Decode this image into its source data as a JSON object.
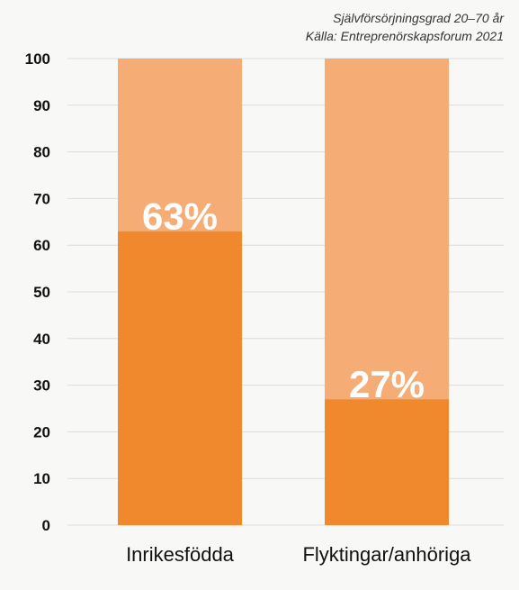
{
  "subtitle": {
    "line1": "Självförsörjningsgrad 20–70 år",
    "line2": "Källa: Entreprenörskapsforum 2021"
  },
  "colors": {
    "background": "#f8f8f6",
    "bar_fill": "#f0892e",
    "bar_remainder": "#f5ac75",
    "grid": "#dcdcdc",
    "text": "#111111",
    "label_text": "#ffffff"
  },
  "chart_data": {
    "type": "bar",
    "stacked": true,
    "categories": [
      "Inrikesfödda",
      "Flyktingar/anhöriga"
    ],
    "values": [
      63,
      27
    ],
    "data_labels": [
      "63%",
      "27%"
    ],
    "remainder_to": 100,
    "ylim": [
      0,
      100
    ],
    "yticks": [
      0,
      10,
      20,
      30,
      40,
      50,
      60,
      70,
      80,
      90,
      100
    ],
    "grid": true,
    "legend": "none"
  }
}
